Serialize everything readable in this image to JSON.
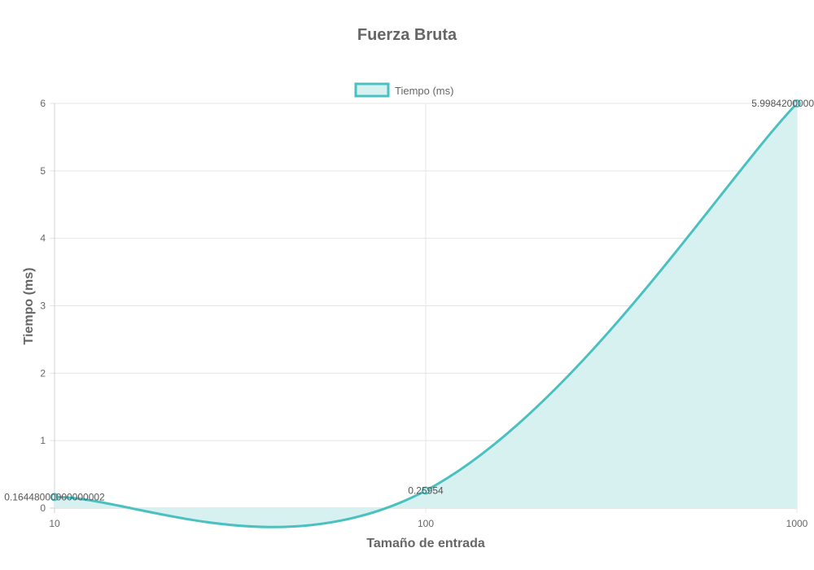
{
  "chart_data": {
    "type": "line",
    "title": "Fuerza Bruta",
    "xlabel": "Tamaño de entrada",
    "ylabel": "Tiempo (ms)",
    "x_scale": "log",
    "x": [
      10,
      100,
      1000
    ],
    "x_ticks": [
      "10",
      "100",
      "1000"
    ],
    "y_ticks": [
      "0",
      "1",
      "2",
      "3",
      "4",
      "5",
      "6"
    ],
    "ylim": [
      0,
      6
    ],
    "grid": true,
    "legend_position": "top",
    "series": [
      {
        "name": "Tiempo (ms)",
        "values": [
          0.16448,
          0.25954,
          5.99842
        ],
        "value_labels": [
          "0.16448000000000002",
          "0.25954",
          "5.9984200000"
        ],
        "fill": true,
        "color": "#4bc0c0",
        "fill_color": "#d7f0f0"
      }
    ]
  }
}
